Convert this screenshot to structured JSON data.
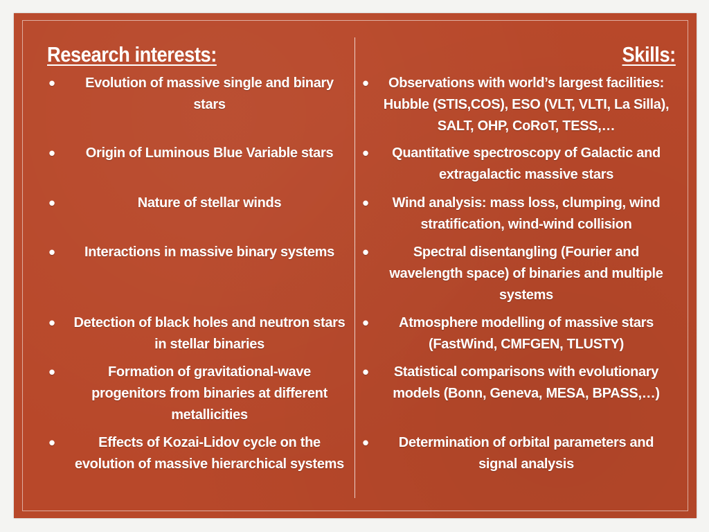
{
  "left": {
    "title": "Research interests:",
    "items": [
      "Evolution of massive single and binary stars",
      "Origin of Luminous Blue Variable stars",
      "Nature of stellar winds",
      "Interactions in massive binary systems",
      "Detection of black holes and neutron stars in stellar binaries",
      "Formation of gravitational-wave progenitors from binaries at different metallicities",
      "Effects of Kozai-Lidov cycle on the evolution of massive hierarchical systems"
    ]
  },
  "right": {
    "title": "Skills:",
    "items": [
      "Observations with world’s largest facilities: Hubble (STIS,COS), ESO (VLT, VLTI, La Silla), SALT, OHP, CoRoT, TESS,…",
      "Quantitative spectroscopy of Galactic and extragalactic massive stars",
      "Wind analysis: mass loss, clumping, wind stratification, wind-wind collision",
      "Spectral disentangling (Fourier and wavelength space) of binaries and multiple systems",
      "Atmosphere modelling of massive stars (FastWind, CMFGEN, TLUSTY)",
      "Statistical comparisons with evolutionary models (Bonn, Geneva, MESA, BPASS,…)",
      "Determination of orbital parameters and signal analysis"
    ]
  },
  "bullet": "•",
  "colors": {
    "background": "#b8482a",
    "text": "#ffffff",
    "page": "#f4f4f2"
  }
}
